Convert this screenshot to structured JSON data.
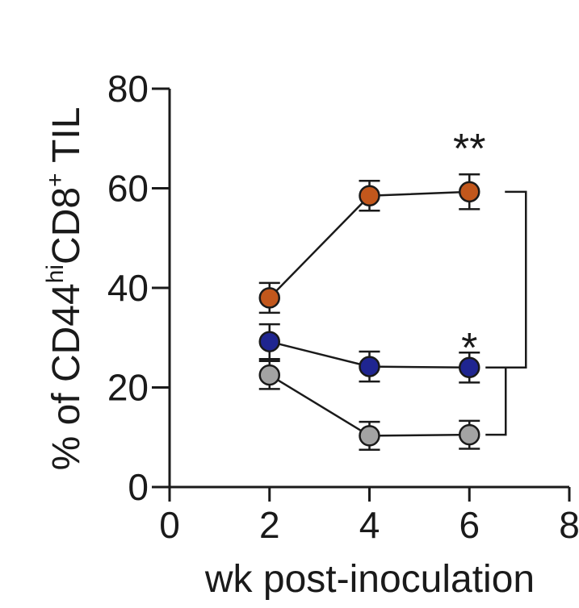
{
  "chart_data": {
    "type": "line",
    "title": "",
    "xlabel": "wk post-inoculation",
    "ylabel": {
      "prefix": "% of CD44",
      "sup1": "hi",
      "middle": "CD8",
      "sup2": "+",
      "suffix": " TIL"
    },
    "xlim": [
      0,
      8
    ],
    "ylim": [
      0,
      80
    ],
    "xticks": [
      0,
      2,
      4,
      6,
      8
    ],
    "yticks": [
      0,
      20,
      40,
      60,
      80
    ],
    "grid": false,
    "series": [
      {
        "color": "#c2571c",
        "x": [
          2,
          4,
          6
        ],
        "y": [
          38,
          58.5,
          59.3
        ],
        "err": [
          3,
          3,
          3.5
        ]
      },
      {
        "color": "#1f2590",
        "x": [
          2,
          4,
          6
        ],
        "y": [
          29.2,
          24.2,
          24
        ],
        "err": [
          3.5,
          3,
          3
        ]
      },
      {
        "color": "#a3a3a3",
        "x": [
          2,
          4,
          6
        ],
        "y": [
          22.5,
          10.3,
          10.5
        ],
        "err": [
          2.8,
          2.8,
          2.8
        ]
      }
    ],
    "annotations": [
      {
        "text": "**",
        "x": 6,
        "y": 70
      },
      {
        "text": "*",
        "x": 6,
        "y": 30
      }
    ],
    "brackets": [
      {
        "from_series": 0,
        "to_series": 1
      },
      {
        "from_series": 1,
        "to_series": 2
      }
    ]
  }
}
